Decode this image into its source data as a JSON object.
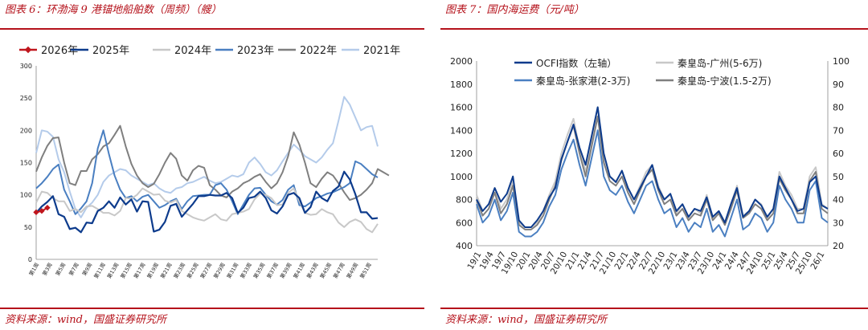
{
  "left": {
    "title": "图表 6：环渤海 9 港锚地船舶数（周频）（艘）",
    "source": "资料来源：wind，国盛证券研究所"
  },
  "right": {
    "title": "图表 7：国内海运费（元/吨）",
    "source": "资料来源：wind，国盛证券研究所"
  },
  "chart_data": [
    {
      "type": "line",
      "title": "环渤海 9 港锚地船舶数（周频）（艘）",
      "ylim": [
        0,
        300
      ],
      "yticks": [
        0,
        50,
        100,
        150,
        200,
        250,
        300
      ],
      "x_labels": [
        "第1周",
        "第3周",
        "第5周",
        "第7周",
        "第9周",
        "第11周",
        "第13周",
        "第15周",
        "第17周",
        "第19周",
        "第21周",
        "第23周",
        "第25周",
        "第27周",
        "第29周",
        "第31周",
        "第33周",
        "第35周",
        "第37周",
        "第39周",
        "第41周",
        "第43周",
        "第45周",
        "第47周",
        "第49周",
        "第51周"
      ],
      "legend_position": "top",
      "series": [
        {
          "name": "2026年",
          "color": "#c0161d",
          "marker": "diamond",
          "values": [
            73,
            75,
            80
          ]
        },
        {
          "name": "2025年",
          "color": "#0d3b8c",
          "values": [
            72,
            82,
            89,
            98,
            70,
            66,
            47,
            49,
            42,
            57,
            56,
            75,
            80,
            90,
            80,
            96,
            85,
            93,
            74,
            90,
            89,
            43,
            46,
            58,
            83,
            86,
            66,
            76,
            86,
            98,
            98,
            100,
            99,
            99,
            103,
            95,
            72,
            80,
            95,
            97,
            105,
            95,
            76,
            71,
            82,
            100,
            103,
            95,
            72,
            81,
            105,
            95,
            90,
            106,
            113,
            136,
            124,
            101,
            73,
            73,
            63,
            64
          ]
        },
        {
          "name": "2024年",
          "color": "#c8c8c8",
          "values": [
            88,
            105,
            103,
            95,
            90,
            90,
            75,
            78,
            73,
            82,
            83,
            78,
            72,
            72,
            68,
            75,
            95,
            94,
            100,
            110,
            105,
            100,
            101,
            91,
            88,
            92,
            75,
            70,
            65,
            62,
            60,
            65,
            70,
            62,
            60,
            70,
            72,
            74,
            78,
            93,
            102,
            100,
            95,
            84,
            85,
            103,
            110,
            90,
            72,
            69,
            70,
            78,
            73,
            70,
            57,
            50,
            58,
            62,
            58,
            47,
            42,
            55
          ]
        },
        {
          "name": "2023年",
          "color": "#4a7fc1",
          "values": [
            110,
            118,
            128,
            140,
            147,
            108,
            90,
            70,
            79,
            90,
            118,
            172,
            200,
            163,
            130,
            108,
            95,
            98,
            90,
            97,
            100,
            90,
            80,
            84,
            90,
            94,
            78,
            90,
            98,
            99,
            100,
            100,
            115,
            118,
            108,
            90,
            70,
            85,
            100,
            110,
            111,
            100,
            90,
            85,
            92,
            108,
            115,
            84,
            82,
            88,
            95,
            98,
            102,
            104,
            108,
            112,
            118,
            152,
            148,
            140,
            132,
            127
          ]
        },
        {
          "name": "2022年",
          "color": "#7f7f7f",
          "values": [
            136,
            158,
            176,
            188,
            189,
            150,
            118,
            115,
            137,
            137,
            155,
            163,
            175,
            180,
            193,
            207,
            175,
            148,
            130,
            118,
            112,
            117,
            132,
            150,
            165,
            156,
            130,
            122,
            138,
            145,
            142,
            115,
            108,
            99,
            96,
            105,
            110,
            118,
            122,
            128,
            132,
            120,
            110,
            118,
            135,
            160,
            197,
            178,
            150,
            118,
            112,
            125,
            135,
            130,
            118,
            104,
            92,
            95,
            100,
            108,
            118,
            140,
            135,
            130
          ]
        },
        {
          "name": "2021年",
          "color": "#b4cbea",
          "values": [
            165,
            200,
            198,
            190,
            155,
            135,
            105,
            78,
            65,
            80,
            88,
            100,
            120,
            130,
            135,
            140,
            138,
            130,
            125,
            120,
            115,
            118,
            110,
            105,
            103,
            110,
            112,
            118,
            120,
            124,
            128,
            122,
            118,
            120,
            125,
            130,
            128,
            132,
            150,
            158,
            148,
            135,
            130,
            138,
            152,
            165,
            178,
            170,
            160,
            155,
            150,
            158,
            170,
            180,
            215,
            252,
            240,
            220,
            200,
            205,
            207,
            175
          ]
        }
      ]
    },
    {
      "type": "line",
      "title": "国内海运费（元/吨）",
      "ylim_left": [
        400,
        2000
      ],
      "yticks_left": [
        400,
        600,
        800,
        1000,
        1200,
        1400,
        1600,
        1800,
        2000
      ],
      "ylim_right": [
        20,
        100
      ],
      "yticks_right": [
        20,
        30,
        40,
        50,
        60,
        70,
        80,
        90,
        100
      ],
      "x_labels": [
        "19/1",
        "19/4",
        "19/7",
        "19/10",
        "20/1",
        "20/4",
        "20/7",
        "20/10",
        "21/1",
        "21/4",
        "21/7",
        "21/10",
        "22/1",
        "22/4",
        "22/7",
        "22/10",
        "23/1",
        "23/4",
        "23/7",
        "23/10",
        "24/1",
        "24/4",
        "24/7",
        "24/10",
        "25/1",
        "25/4",
        "25/7",
        "25/10",
        "26/1"
      ],
      "legend_position": "top",
      "series": [
        {
          "name": "OCFI指数（左轴）",
          "axis": "left",
          "color": "#0d3b8c",
          "values": [
            800,
            700,
            760,
            900,
            780,
            850,
            1000,
            620,
            560,
            560,
            620,
            700,
            820,
            900,
            1150,
            1300,
            1450,
            1250,
            1100,
            1350,
            1600,
            1200,
            1000,
            950,
            1050,
            900,
            800,
            900,
            1000,
            1100,
            900,
            800,
            850,
            700,
            760,
            650,
            720,
            700,
            820,
            650,
            700,
            600,
            760,
            900,
            650,
            700,
            800,
            750,
            650,
            720,
            1000,
            900,
            800,
            700,
            720,
            950,
            1000,
            750,
            720
          ]
        },
        {
          "name": "秦皇岛-广州(5-6万)",
          "axis": "right",
          "color": "#c8c8c8",
          "values": [
            42,
            35,
            38,
            45,
            36,
            40,
            48,
            30,
            28,
            28,
            30,
            35,
            42,
            48,
            60,
            68,
            75,
            62,
            52,
            66,
            80,
            58,
            50,
            48,
            52,
            45,
            40,
            46,
            52,
            55,
            46,
            40,
            42,
            34,
            38,
            32,
            36,
            34,
            42,
            32,
            35,
            30,
            38,
            46,
            33,
            35,
            40,
            38,
            32,
            36,
            52,
            46,
            42,
            36,
            36,
            50,
            54,
            38,
            36
          ]
        },
        {
          "name": "秦皇岛-张家港(2-3万)",
          "axis": "right",
          "color": "#4a7fc1",
          "values": [
            38,
            30,
            33,
            40,
            31,
            35,
            43,
            26,
            24,
            24,
            26,
            30,
            37,
            42,
            53,
            60,
            66,
            55,
            46,
            58,
            70,
            50,
            44,
            42,
            46,
            39,
            34,
            40,
            46,
            48,
            40,
            34,
            36,
            28,
            32,
            26,
            30,
            28,
            36,
            26,
            29,
            24,
            32,
            40,
            27,
            29,
            34,
            32,
            26,
            30,
            46,
            40,
            36,
            30,
            30,
            44,
            48,
            32,
            30
          ]
        },
        {
          "name": "秦皇岛-宁波(1.5-2万)",
          "axis": "right",
          "color": "#7f7f7f",
          "values": [
            40,
            33,
            36,
            43,
            34,
            38,
            46,
            29,
            27,
            27,
            29,
            33,
            40,
            46,
            57,
            65,
            72,
            60,
            50,
            63,
            76,
            56,
            48,
            46,
            50,
            43,
            38,
            44,
            50,
            53,
            44,
            38,
            40,
            33,
            36,
            31,
            34,
            33,
            40,
            31,
            34,
            29,
            36,
            44,
            32,
            34,
            38,
            36,
            31,
            34,
            49,
            44,
            40,
            34,
            34,
            48,
            52,
            36,
            34
          ]
        }
      ]
    }
  ]
}
